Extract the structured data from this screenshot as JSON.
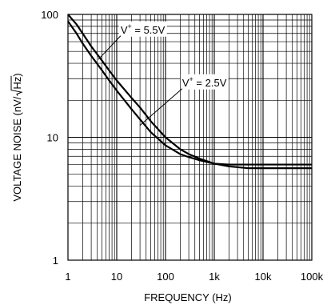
{
  "chart_data": {
    "type": "line",
    "title": "",
    "xlabel": "FREQUENCY (Hz)",
    "ylabel": "VOLTAGE NOISE (nV/√Hz)",
    "ylabel_parts": {
      "prefix": "VOLTAGE NOISE (nV/",
      "radicand": "Hz",
      "suffix": ")"
    },
    "x_scale": "log",
    "y_scale": "log",
    "xlim": [
      1,
      100000
    ],
    "ylim": [
      1,
      100
    ],
    "grid": true,
    "x_ticks": [
      {
        "value": 1,
        "label": "1"
      },
      {
        "value": 10,
        "label": "10"
      },
      {
        "value": 100,
        "label": "100"
      },
      {
        "value": 1000,
        "label": "1k"
      },
      {
        "value": 10000,
        "label": "10k"
      },
      {
        "value": 100000,
        "label": "100k"
      }
    ],
    "y_ticks": [
      {
        "value": 1,
        "label": "1"
      },
      {
        "value": 10,
        "label": "10"
      },
      {
        "value": 100,
        "label": "100"
      }
    ],
    "series": [
      {
        "name": "V+ = 5.5V",
        "label_main": "V",
        "label_sup": "+",
        "label_rest": " = 5.5V",
        "color": "#000000",
        "x": [
          1,
          1.5,
          2,
          3,
          5,
          7,
          10,
          20,
          30,
          50,
          100,
          200,
          300,
          500,
          1000,
          2000,
          5000,
          10000,
          100000
        ],
        "y": [
          100,
          83,
          70,
          55,
          42,
          35,
          29,
          21,
          17.5,
          13.5,
          10,
          8,
          7.3,
          6.7,
          6.1,
          6,
          6,
          6,
          6
        ]
      },
      {
        "name": "V+ = 2.5V",
        "label_main": "V",
        "label_sup": "+",
        "label_rest": " = 2.5V",
        "color": "#000000",
        "x": [
          1,
          1.5,
          2,
          3,
          5,
          7,
          10,
          20,
          30,
          50,
          100,
          200,
          300,
          500,
          1000,
          2000,
          5000,
          10000,
          100000
        ],
        "y": [
          88,
          70,
          58,
          46,
          35,
          29,
          24,
          17,
          14,
          11,
          8.6,
          7.3,
          6.9,
          6.5,
          6.1,
          5.8,
          5.6,
          5.6,
          5.6
        ]
      }
    ],
    "annotations": [
      {
        "series": 0,
        "anchor": [
          4.2,
          43
        ],
        "box": [
          12,
          70
        ]
      },
      {
        "series": 1,
        "anchor": [
          30,
          12.5
        ],
        "box": [
          220,
          26
        ]
      }
    ]
  }
}
